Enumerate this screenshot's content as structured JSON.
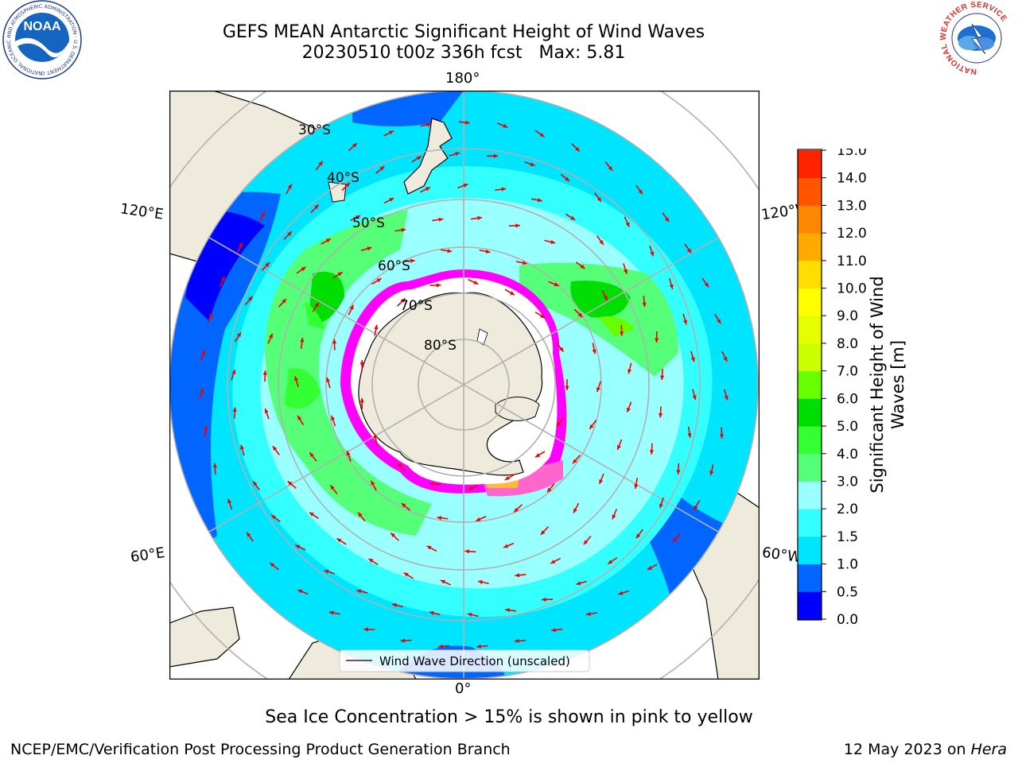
{
  "title": {
    "line1": "GEFS MEAN Antarctic Significant Height of Wind Waves",
    "line2": "20230510 t00z 336h fcst   Max: 5.81"
  },
  "logos": {
    "left": {
      "name": "NOAA",
      "ring_text": "NATIONAL OCEANIC AND ATMOSPHERIC ADMINISTRATION · U.S. DEPARTMENT OF COMMERCE"
    },
    "right": {
      "name": "NATIONAL WEATHER SERVICE"
    }
  },
  "map": {
    "projection": "south polar stereographic",
    "latitude_labels": [
      "30°S",
      "40°S",
      "50°S",
      "60°S",
      "70°S",
      "80°S"
    ],
    "longitude_labels": {
      "top": "180°",
      "bottom": "0°",
      "left_upper": "120°E",
      "left_lower": "60°E",
      "right_upper": "120°W",
      "right_lower": "60°W"
    },
    "legend_label": "Wind Wave Direction (unscaled)",
    "colors": {
      "land": "#efebdc",
      "sea_ice_low": "#ff00ff",
      "sea_ice_high": "#ffff00",
      "arrow": "#ee0000",
      "grid": "#b0b0b0"
    }
  },
  "colorbar": {
    "label": "Significant Height of Wind Waves [m]",
    "ticks": [
      "0.0",
      "0.5",
      "1.0",
      "1.5",
      "2.0",
      "3.0",
      "4.0",
      "5.0",
      "6.0",
      "7.0",
      "8.0",
      "9.0",
      "10.0",
      "11.0",
      "12.0",
      "13.0",
      "14.0",
      "15.0"
    ],
    "colors": [
      "#0000ff",
      "#0066ff",
      "#00e5ff",
      "#33ffff",
      "#99ffff",
      "#55ff77",
      "#33ff33",
      "#00dd00",
      "#66ff00",
      "#ccff00",
      "#e5ff00",
      "#ffff00",
      "#ffdd00",
      "#ffaa00",
      "#ff8800",
      "#ff5500",
      "#ff2200"
    ]
  },
  "note": "Sea Ice Concentration > 15% is shown in pink to yellow",
  "footer": {
    "left": "NCEP/EMC/Verification Post Processing Product Generation Branch",
    "right_date": "12 May 2023 on",
    "right_machine": "Hera"
  }
}
